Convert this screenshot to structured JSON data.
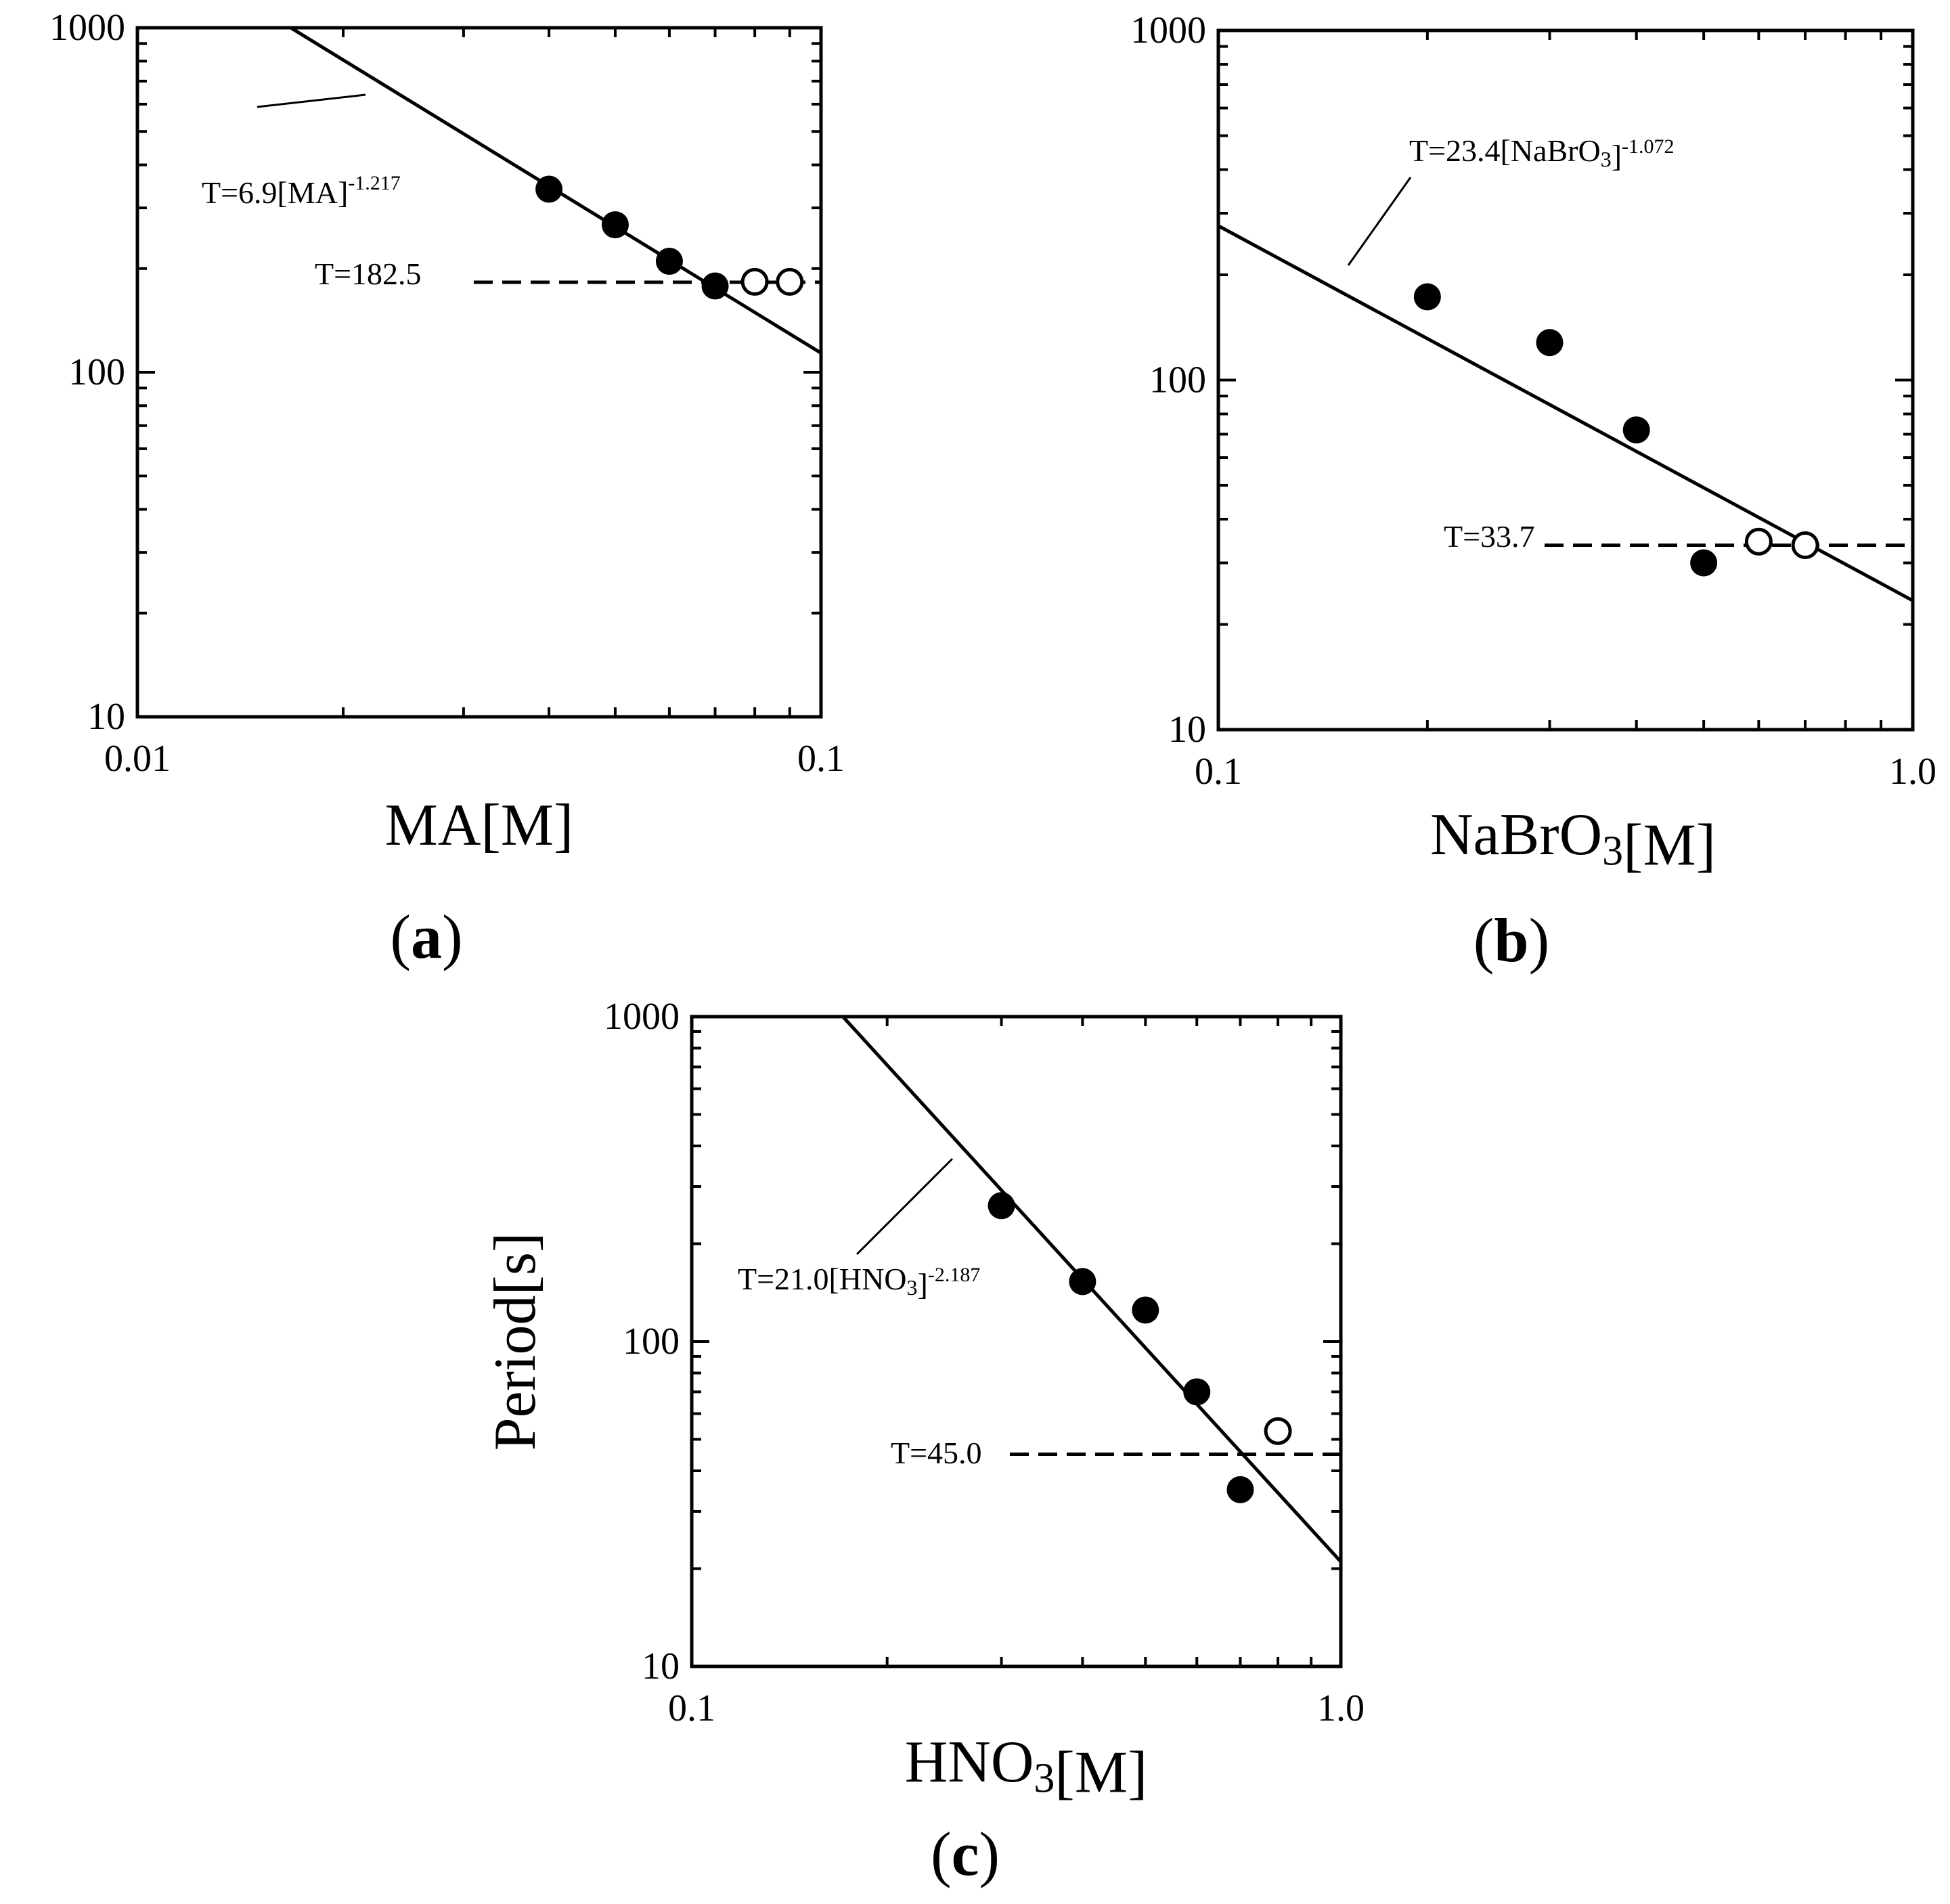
{
  "chart_data": [
    {
      "id": "a",
      "type": "scatter",
      "scale": "log-log",
      "panel_label": "(a)",
      "panel_letter": "a",
      "xlabel": "MA[M]",
      "ylabel": "",
      "xlim": [
        0.01,
        0.1
      ],
      "ylim": [
        10,
        1000
      ],
      "x_tick_labels": [
        "0.01",
        "0.1"
      ],
      "y_tick_labels": [
        "10",
        "100",
        "1000"
      ],
      "x_tick_values": [
        0.01,
        0.1
      ],
      "y_tick_values": [
        10,
        100,
        1000
      ],
      "series": [
        {
          "name": "filled",
          "marker": "filled-circle",
          "x": [
            0.04,
            0.05,
            0.06,
            0.07
          ],
          "y": [
            340,
            268,
            210,
            178
          ]
        },
        {
          "name": "open",
          "marker": "open-circle",
          "x": [
            0.08,
            0.09
          ],
          "y": [
            183,
            183
          ]
        }
      ],
      "fit": {
        "coefficient": 6.9,
        "exponent": -1.217,
        "label_main": "T=6.9[MA]",
        "label_exp": "-1.217"
      },
      "threshold": {
        "value": 182.5,
        "label": "T=182.5"
      }
    },
    {
      "id": "b",
      "type": "scatter",
      "scale": "log-log",
      "panel_label": "(b)",
      "panel_letter": "b",
      "xlabel": "NaBrO3[M]",
      "ylabel": "",
      "xlim": [
        0.1,
        1.0
      ],
      "ylim": [
        10,
        1000
      ],
      "x_tick_labels": [
        "0.1",
        "1.0"
      ],
      "y_tick_labels": [
        "10",
        "100",
        "1000"
      ],
      "x_tick_values": [
        0.1,
        1.0
      ],
      "y_tick_values": [
        10,
        100,
        1000
      ],
      "series": [
        {
          "name": "filled",
          "marker": "filled-circle",
          "x": [
            0.2,
            0.3,
            0.4,
            0.5
          ],
          "y": [
            173,
            128,
            72,
            30
          ]
        },
        {
          "name": "open",
          "marker": "open-circle",
          "x": [
            0.6,
            0.7
          ],
          "y": [
            34.5,
            33.7
          ]
        }
      ],
      "fit": {
        "coefficient": 23.4,
        "exponent": -1.072,
        "label_main": "T=23.4[NaBrO3]",
        "label_exp": "-1.072"
      },
      "threshold": {
        "value": 33.7,
        "label": "T=33.7"
      }
    },
    {
      "id": "c",
      "type": "scatter",
      "scale": "log-log",
      "panel_label": "(c)",
      "panel_letter": "c",
      "xlabel": "HNO3[M]",
      "ylabel": "Period[s]",
      "xlim": [
        0.1,
        1.0
      ],
      "ylim": [
        10,
        1000
      ],
      "x_tick_labels": [
        "0.1",
        "1.0"
      ],
      "y_tick_labels": [
        "10",
        "100",
        "1000"
      ],
      "x_tick_values": [
        0.1,
        1.0
      ],
      "y_tick_values": [
        10,
        100,
        1000
      ],
      "series": [
        {
          "name": "filled",
          "marker": "filled-circle",
          "x": [
            0.3,
            0.4,
            0.5,
            0.6,
            0.7
          ],
          "y": [
            262,
            153,
            125,
            70,
            35
          ]
        },
        {
          "name": "open",
          "marker": "open-circle",
          "x": [
            0.8
          ],
          "y": [
            53
          ]
        }
      ],
      "fit": {
        "coefficient": 21.0,
        "exponent": -2.187,
        "label_main": "T=21.0[HNO3]",
        "label_exp": "-2.187"
      },
      "threshold": {
        "value": 45.0,
        "label": "T=45.0"
      }
    }
  ]
}
